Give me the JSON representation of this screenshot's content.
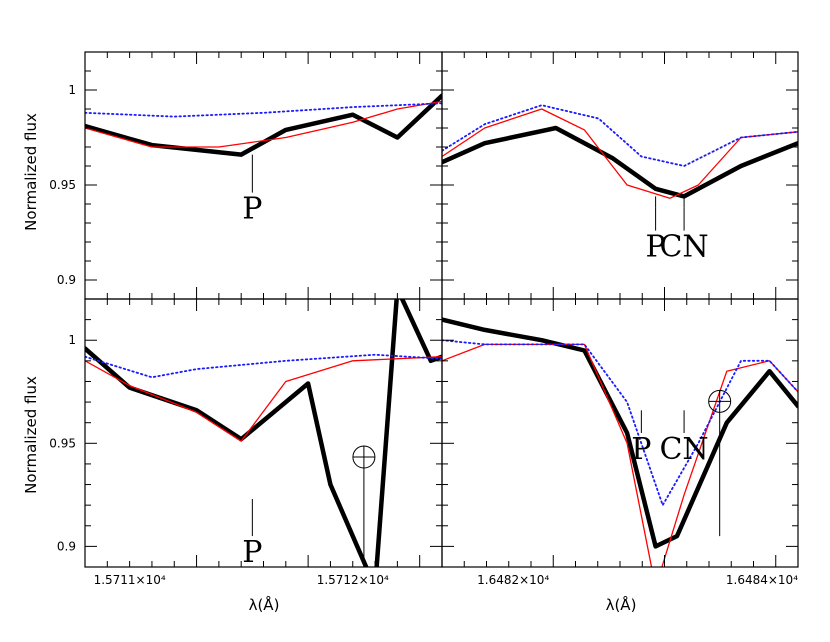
{
  "ylabel": "Normalized flux",
  "xlabel": "λ(Å)",
  "chart_data": [
    {
      "type": "line",
      "panel": "top-left",
      "xlim": [
        15710.8,
        15712.4
      ],
      "ylim": [
        0.89,
        1.02
      ],
      "x_ticklabels": [],
      "y_ticks": [
        0.9,
        0.95,
        1
      ],
      "y_ticklabels": [
        "0.9",
        "0.95",
        "1"
      ],
      "series": [
        {
          "style": "thick-black",
          "x": [
            15710.8,
            15711.1,
            15711.5,
            15711.7,
            15712.0,
            15712.2,
            15712.4
          ],
          "y": [
            0.981,
            0.971,
            0.966,
            0.979,
            0.987,
            0.975,
            0.997
          ]
        },
        {
          "style": "red",
          "x": [
            15710.8,
            15711.1,
            15711.4,
            15711.7,
            15712.0,
            15712.2,
            15712.4
          ],
          "y": [
            0.98,
            0.97,
            0.97,
            0.975,
            0.983,
            0.99,
            0.994
          ]
        },
        {
          "style": "blue-dotted",
          "x": [
            15710.8,
            15711.2,
            15711.6,
            15712.0,
            15712.4
          ],
          "y": [
            0.988,
            0.986,
            0.988,
            0.991,
            0.993
          ]
        }
      ],
      "annotations": [
        {
          "text": "P",
          "x": 15711.55,
          "y_top": 0.966,
          "y_bottom": 0.946
        }
      ]
    },
    {
      "type": "line",
      "panel": "top-right",
      "xlim": [
        16481.5,
        16484.0
      ],
      "ylim": [
        0.89,
        1.02
      ],
      "x_ticklabels": [],
      "y_ticks": [
        0.9,
        0.95,
        1
      ],
      "y_ticklabels": [],
      "series": [
        {
          "style": "thick-black",
          "x": [
            16481.5,
            16481.8,
            16482.3,
            16482.7,
            16483.0,
            16483.2,
            16483.6,
            16484.0
          ],
          "y": [
            0.962,
            0.972,
            0.98,
            0.964,
            0.948,
            0.944,
            0.96,
            0.972
          ]
        },
        {
          "style": "red",
          "x": [
            16481.5,
            16481.8,
            16482.2,
            16482.5,
            16482.8,
            16483.1,
            16483.3,
            16483.6,
            16484.0
          ],
          "y": [
            0.965,
            0.98,
            0.99,
            0.979,
            0.95,
            0.943,
            0.95,
            0.975,
            0.978
          ]
        },
        {
          "style": "blue-dotted",
          "x": [
            16481.5,
            16481.8,
            16482.2,
            16482.6,
            16482.9,
            16483.2,
            16483.6,
            16484.0
          ],
          "y": [
            0.968,
            0.982,
            0.992,
            0.985,
            0.965,
            0.96,
            0.975,
            0.978
          ]
        }
      ],
      "annotations": [
        {
          "text": "P",
          "x": 16483.0,
          "y_tick": 0.944,
          "y_top": 0.938,
          "y_bottom": 0.926
        },
        {
          "text": "CN",
          "x": 16483.2,
          "y_tick": 0.944,
          "y_top": 0.938,
          "y_bottom": 0.926
        }
      ]
    },
    {
      "type": "line",
      "panel": "bottom-left",
      "xlim": [
        15710.8,
        15712.4
      ],
      "ylim": [
        0.89,
        1.02
      ],
      "x_ticks": [
        15711,
        15712
      ],
      "x_ticklabels": [
        "1.5711×10⁴",
        "1.5712×10⁴"
      ],
      "y_ticks": [
        0.9,
        0.95,
        1
      ],
      "y_ticklabels": [
        "0.9",
        "0.95",
        "1"
      ],
      "series": [
        {
          "style": "thick-black",
          "x": [
            15710.8,
            15711.0,
            15711.3,
            15711.5,
            15711.8,
            15711.9,
            15712.1,
            15712.2,
            15712.35,
            15712.4
          ],
          "y": [
            0.996,
            0.977,
            0.966,
            0.952,
            0.979,
            0.93,
            0.88,
            1.025,
            0.99,
            0.992
          ]
        },
        {
          "style": "red",
          "x": [
            15710.8,
            15711.0,
            15711.3,
            15711.5,
            15711.7,
            15712.0,
            15712.4
          ],
          "y": [
            0.99,
            0.978,
            0.965,
            0.951,
            0.98,
            0.99,
            0.992
          ]
        },
        {
          "style": "blue-dotted",
          "x": [
            15710.8,
            15711.1,
            15711.3,
            15711.7,
            15712.1,
            15712.4
          ],
          "y": [
            0.992,
            0.982,
            0.986,
            0.99,
            0.993,
            0.991
          ]
        }
      ],
      "annotations": [
        {
          "text": "P",
          "x": 15711.55,
          "y_top": 0.923,
          "y_bottom": 0.905
        },
        {
          "text": "⊕",
          "x": 15712.05,
          "y_top": 0.938,
          "y_bottom": 0.89
        }
      ]
    },
    {
      "type": "line",
      "panel": "bottom-right",
      "xlim": [
        16481.5,
        16484.0
      ],
      "ylim": [
        0.89,
        1.02
      ],
      "x_ticks": [
        16482,
        16484
      ],
      "x_ticklabels": [
        "1.6482×10⁴",
        "1.6484×10⁴"
      ],
      "y_ticks": [
        0.9,
        0.95,
        1
      ],
      "y_ticklabels": [],
      "series": [
        {
          "style": "thick-black",
          "x": [
            16481.5,
            16481.8,
            16482.2,
            16482.5,
            16482.8,
            16483.0,
            16483.15,
            16483.5,
            16483.8,
            16484.0
          ],
          "y": [
            1.01,
            1.005,
            1.0,
            0.995,
            0.955,
            0.9,
            0.905,
            0.96,
            0.985,
            0.968
          ]
        },
        {
          "style": "red",
          "x": [
            16481.5,
            16481.8,
            16482.2,
            16482.5,
            16482.8,
            16483.0,
            16483.2,
            16483.5,
            16483.8,
            16484.0
          ],
          "y": [
            0.99,
            0.998,
            0.998,
            0.998,
            0.95,
            0.88,
            0.925,
            0.985,
            0.99,
            0.975
          ]
        },
        {
          "style": "blue-dotted",
          "x": [
            16481.5,
            16481.8,
            16482.2,
            16482.5,
            16482.8,
            16483.05,
            16483.3,
            16483.6,
            16483.8,
            16484.0
          ],
          "y": [
            1.0,
            0.998,
            0.998,
            0.998,
            0.97,
            0.92,
            0.95,
            0.99,
            0.99,
            0.975
          ]
        }
      ],
      "annotations": [
        {
          "text": "P",
          "x": 16482.9,
          "y_top": 0.966,
          "y_bottom": 0.955
        },
        {
          "text": "CN",
          "x": 16483.2,
          "y_top": 0.966,
          "y_bottom": 0.955
        },
        {
          "text": "⊕",
          "x": 16483.45,
          "y_top": 0.965,
          "y_bottom": 0.905
        }
      ]
    }
  ]
}
